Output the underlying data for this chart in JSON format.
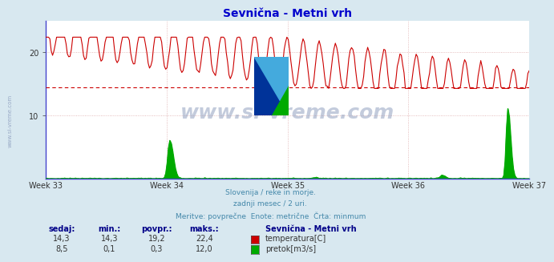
{
  "title": "Sevnična - Metni vrh",
  "title_color": "#0000cc",
  "background_color": "#d8e8f0",
  "plot_bg_color": "#ffffff",
  "x_tick_labels": [
    "Week 33",
    "Week 34",
    "Week 35",
    "Week 36",
    "Week 37"
  ],
  "n_points": 360,
  "ylim": [
    0,
    25
  ],
  "y_ticks": [
    10,
    20
  ],
  "grid_color": "#ddaaaa",
  "temp_color": "#cc0000",
  "flow_color": "#00aa00",
  "dashed_line_color": "#cc0000",
  "dashed_line_value": 14.5,
  "temp_min": 14.3,
  "temp_max": 22.4,
  "temp_avg": 19.2,
  "temp_current": 14.3,
  "flow_min": 0.1,
  "flow_max": 12.0,
  "flow_avg": 0.3,
  "flow_current": 8.5,
  "flow_display_max": 12.0,
  "subtitle_lines": [
    "Slovenija / reke in morje.",
    "zadnji mesec / 2 uri.",
    "Meritve: povprečne  Enote: metrične  Črta: minmum"
  ],
  "subtitle_color": "#4488aa",
  "legend_title": "Sevnična - Metni vrh",
  "legend_color": "#000088",
  "label_color": "#000088",
  "watermark": "www.si-vreme.com",
  "sidebar_text": "www.si-vreme.com",
  "left_spine_color": "#4444cc",
  "bottom_spine_color": "#4444cc",
  "logo_yellow": "#ffdd00",
  "logo_blue_dark": "#003399",
  "logo_blue_light": "#44aadd",
  "logo_green": "#00aa00"
}
